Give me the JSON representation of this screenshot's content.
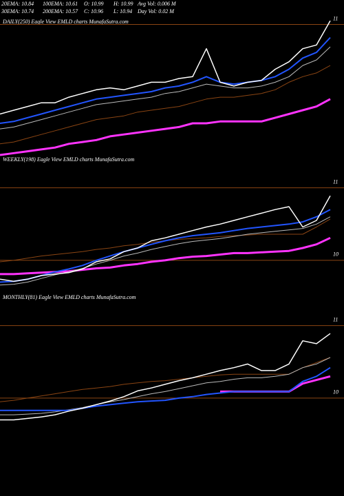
{
  "header": {
    "row1": [
      "20EMA: 10.84",
      "100EMA: 10.61",
      "O: 10.99",
      "H: 10.99",
      "Avg Vol: 0.006  M"
    ],
    "row2": [
      "30EMA: 10.74",
      "200EMA: 10.57",
      "C: 10.96",
      "L: 10.94",
      "Day Vol: 0.02  M"
    ]
  },
  "chart_data": [
    {
      "type": "line",
      "title": "DAILY(250) Eagle  View  EMLD charts MunafaSutra.com",
      "ylim": [
        10.3,
        11.05
      ],
      "yticks": [
        11
      ],
      "series": [
        {
          "color": "#8b4513",
          "width": 1,
          "values": [
            10.36,
            10.37,
            10.39,
            10.41,
            10.43,
            10.45,
            10.47,
            10.49,
            10.5,
            10.51,
            10.53,
            10.54,
            10.55,
            10.56,
            10.58,
            10.6,
            10.61,
            10.61,
            10.62,
            10.63,
            10.65,
            10.69,
            10.72,
            10.74,
            10.78
          ]
        },
        {
          "color": "#ff33ff",
          "width": 3,
          "values": [
            10.3,
            10.31,
            10.32,
            10.33,
            10.34,
            10.36,
            10.37,
            10.38,
            10.4,
            10.41,
            10.42,
            10.43,
            10.44,
            10.45,
            10.47,
            10.47,
            10.48,
            10.48,
            10.48,
            10.48,
            10.5,
            10.52,
            10.54,
            10.56,
            10.6
          ]
        },
        {
          "color": "#bbbbbb",
          "width": 1,
          "values": [
            10.44,
            10.45,
            10.47,
            10.49,
            10.51,
            10.53,
            10.55,
            10.57,
            10.58,
            10.59,
            10.6,
            10.61,
            10.63,
            10.64,
            10.66,
            10.68,
            10.67,
            10.66,
            10.66,
            10.67,
            10.69,
            10.72,
            10.78,
            10.81,
            10.88
          ]
        },
        {
          "color": "#2255ff",
          "width": 2,
          "values": [
            10.47,
            10.48,
            10.5,
            10.52,
            10.54,
            10.56,
            10.58,
            10.6,
            10.61,
            10.62,
            10.63,
            10.64,
            10.66,
            10.67,
            10.69,
            10.72,
            10.69,
            10.68,
            10.69,
            10.7,
            10.72,
            10.76,
            10.82,
            10.85,
            10.93
          ]
        },
        {
          "color": "#ffffff",
          "width": 1.5,
          "values": [
            10.52,
            10.54,
            10.56,
            10.58,
            10.58,
            10.61,
            10.63,
            10.65,
            10.66,
            10.65,
            10.67,
            10.69,
            10.69,
            10.71,
            10.72,
            10.87,
            10.69,
            10.67,
            10.69,
            10.7,
            10.76,
            10.8,
            10.87,
            10.89,
            11.02
          ]
        }
      ]
    },
    {
      "type": "line",
      "title": "WEEKLY(198) Eagle  View  EMLD charts MunafaSutra.com",
      "ylim": [
        9.6,
        11.31
      ],
      "yticks": [
        10,
        11
      ],
      "series": [
        {
          "color": "#8b4513",
          "width": 1,
          "values": [
            9.98,
            10.0,
            10.03,
            10.06,
            10.08,
            10.1,
            10.12,
            10.15,
            10.17,
            10.2,
            10.22,
            10.25,
            10.27,
            10.29,
            10.3,
            10.31,
            10.33,
            10.34,
            10.35,
            10.36,
            10.36,
            10.36,
            10.36,
            10.46,
            10.57
          ]
        },
        {
          "color": "#ff33ff",
          "width": 3,
          "values": [
            9.81,
            9.81,
            9.82,
            9.83,
            9.84,
            9.85,
            9.87,
            9.89,
            9.9,
            9.93,
            9.95,
            9.98,
            10.0,
            10.03,
            10.05,
            10.06,
            10.08,
            10.1,
            10.1,
            10.11,
            10.12,
            10.13,
            10.17,
            10.22,
            10.31
          ]
        },
        {
          "color": "#bbbbbb",
          "width": 1,
          "values": [
            9.66,
            9.67,
            9.7,
            9.75,
            9.8,
            9.84,
            9.89,
            9.95,
            10.0,
            10.06,
            10.1,
            10.15,
            10.19,
            10.23,
            10.26,
            10.28,
            10.3,
            10.33,
            10.36,
            10.38,
            10.4,
            10.42,
            10.44,
            10.5,
            10.6
          ]
        },
        {
          "color": "#2255ff",
          "width": 2,
          "values": [
            9.7,
            9.71,
            9.74,
            9.79,
            9.84,
            9.88,
            9.93,
            10.0,
            10.06,
            10.12,
            10.17,
            10.22,
            10.27,
            10.31,
            10.34,
            10.36,
            10.38,
            10.41,
            10.44,
            10.46,
            10.48,
            10.5,
            10.53,
            10.6,
            10.7
          ]
        },
        {
          "color": "#ffffff",
          "width": 1.5,
          "values": [
            9.74,
            9.71,
            9.74,
            9.79,
            9.81,
            9.83,
            9.88,
            9.98,
            10.02,
            10.12,
            10.17,
            10.27,
            10.31,
            10.36,
            10.41,
            10.46,
            10.5,
            10.55,
            10.6,
            10.65,
            10.7,
            10.74,
            10.46,
            10.55,
            10.89
          ]
        }
      ]
    },
    {
      "type": "line",
      "title": "MONTHLY(81) Eagle  View  EMLD charts MunafaSutra.com",
      "ylim": [
        9.6,
        11.31
      ],
      "yticks": [
        10,
        11
      ],
      "series": [
        {
          "color": "#8b4513",
          "width": 1,
          "values": [
            9.95,
            9.97,
            10.0,
            10.03,
            10.06,
            10.09,
            10.12,
            10.14,
            10.16,
            10.19,
            10.21,
            10.23,
            10.24,
            10.26,
            10.28,
            10.3,
            10.32,
            10.33,
            10.33,
            10.33,
            10.33,
            10.33,
            10.42,
            10.49,
            10.56
          ]
        },
        {
          "color": "#ff33ff",
          "width": 3,
          "values": [
            null,
            null,
            null,
            null,
            null,
            null,
            null,
            null,
            null,
            null,
            null,
            null,
            null,
            null,
            null,
            null,
            10.09,
            10.09,
            10.09,
            10.09,
            10.09,
            10.09,
            10.2,
            10.25,
            10.3
          ]
        },
        {
          "color": "#bbbbbb",
          "width": 1,
          "values": [
            9.77,
            9.77,
            9.78,
            9.79,
            9.81,
            9.84,
            9.87,
            9.91,
            9.95,
            9.98,
            10.02,
            10.06,
            10.09,
            10.13,
            10.17,
            10.21,
            10.23,
            10.26,
            10.28,
            10.28,
            10.3,
            10.33,
            10.42,
            10.47,
            10.56
          ]
        },
        {
          "color": "#2255ff",
          "width": 2,
          "values": [
            9.83,
            9.83,
            9.83,
            9.83,
            9.83,
            9.83,
            9.86,
            9.89,
            9.91,
            9.93,
            9.95,
            9.96,
            9.97,
            10.0,
            10.02,
            10.05,
            10.07,
            10.09,
            10.09,
            10.09,
            10.09,
            10.09,
            10.23,
            10.3,
            10.42
          ]
        },
        {
          "color": "#ffffff",
          "width": 1.5,
          "values": [
            9.7,
            9.7,
            9.72,
            9.74,
            9.77,
            9.82,
            9.86,
            9.91,
            9.96,
            10.02,
            10.1,
            10.14,
            10.19,
            10.24,
            10.28,
            10.33,
            10.38,
            10.42,
            10.47,
            10.38,
            10.38,
            10.47,
            10.79,
            10.75,
            10.89
          ]
        }
      ]
    }
  ]
}
